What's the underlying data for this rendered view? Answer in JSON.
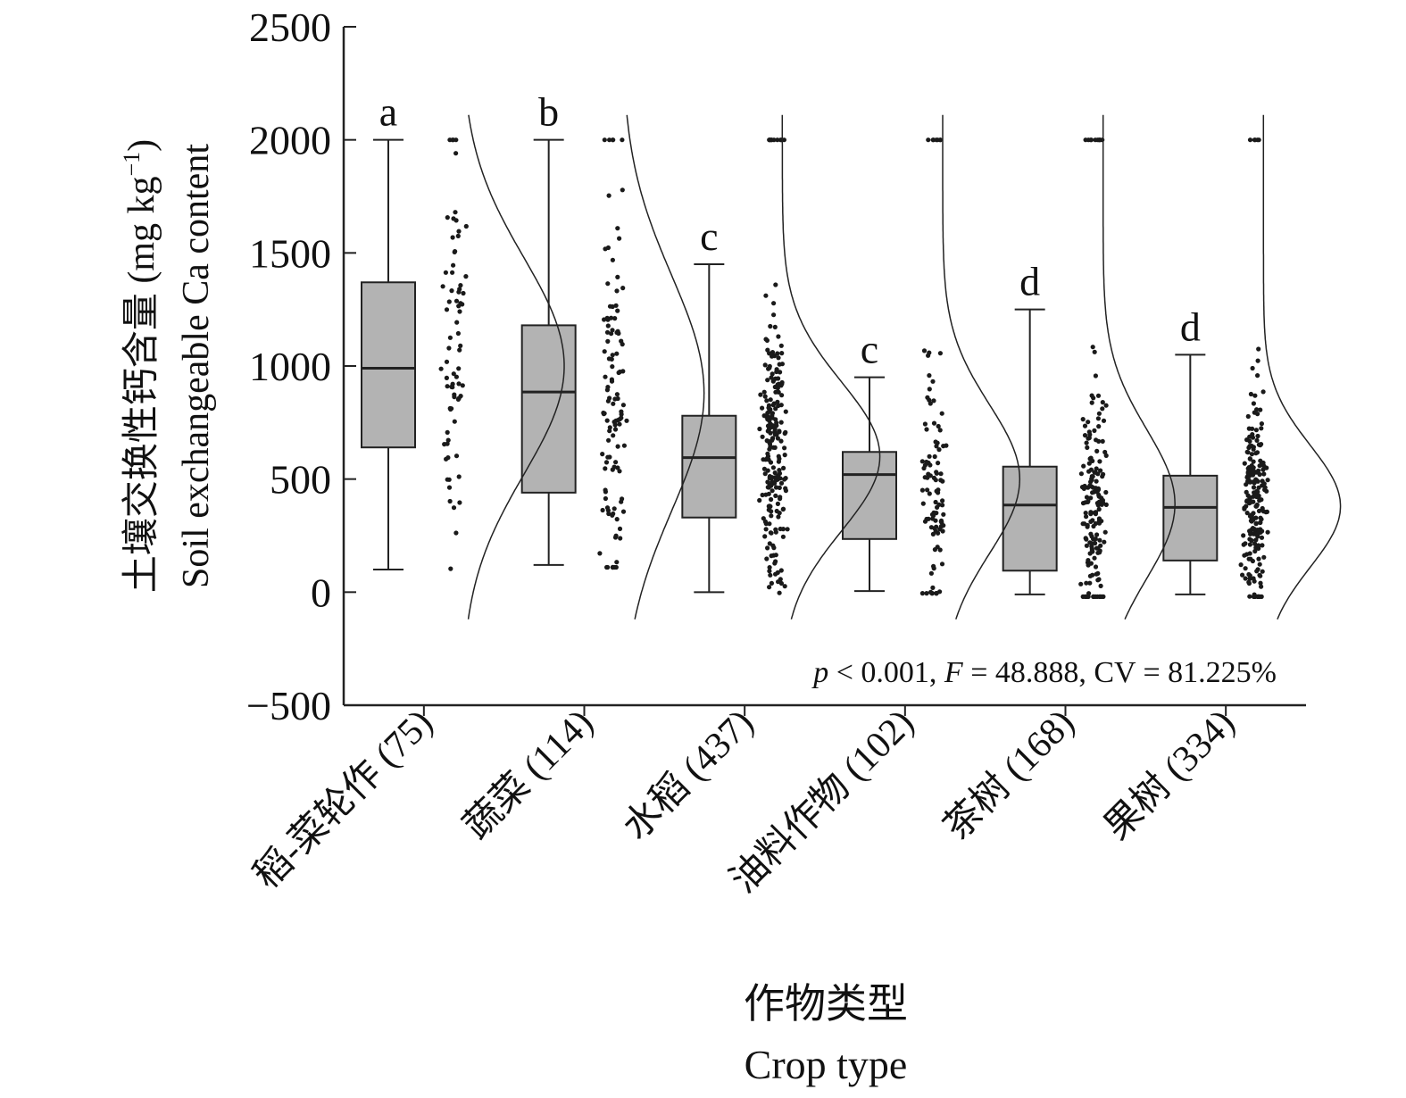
{
  "chart_data": {
    "type": "box",
    "ylabel_cn": "土壤交换性钙含量 (mg kg",
    "ylabel_sup": "−1",
    "ylabel_close": ")",
    "ylabel_en": "Soil exchangeable Ca content",
    "xlabel_cn": "作物类型",
    "xlabel_en": "Crop type",
    "ylim": [
      -500,
      2500
    ],
    "yticks": [
      -500,
      0,
      500,
      1000,
      1500,
      2000,
      2500
    ],
    "ytick_labels": [
      "−500",
      "0",
      "500",
      "1000",
      "1500",
      "2000",
      "2500"
    ],
    "categories": [
      "稻-菜轮作 (75)",
      "蔬菜 (114)",
      "水稻 (437)",
      "油料作物 (102)",
      "茶树 (168)",
      "果树 (334)"
    ],
    "letters": [
      "a",
      "b",
      "c",
      "c",
      "d",
      "d"
    ],
    "stats_text": {
      "p": "p",
      "p_rest": " < 0.001, ",
      "f": "F",
      "f_rest": " = 48.888, CV = 81.225%"
    },
    "boxes": [
      {
        "whisker_low": 100,
        "q1": 640,
        "median": 990,
        "q3": 1370,
        "whisker_high": 2000,
        "n": 75,
        "density_mean": 1000,
        "density_sd": 480,
        "density_peak": 1.0
      },
      {
        "whisker_low": 120,
        "q1": 440,
        "median": 885,
        "q3": 1180,
        "whisker_high": 2000,
        "n": 114,
        "density_mean": 880,
        "density_sd": 520,
        "density_peak": 0.8
      },
      {
        "whisker_low": 0,
        "q1": 330,
        "median": 595,
        "q3": 780,
        "whisker_high": 1450,
        "n": 437,
        "density_mean": 600,
        "density_sd": 330,
        "density_peak": 0.95
      },
      {
        "whisker_low": 5,
        "q1": 235,
        "median": 520,
        "q3": 620,
        "whisker_high": 950,
        "n": 102,
        "density_mean": 500,
        "density_sd": 330,
        "density_peak": 0.75
      },
      {
        "whisker_low": -10,
        "q1": 95,
        "median": 385,
        "q3": 555,
        "whisker_high": 1250,
        "n": 168,
        "density_mean": 390,
        "density_sd": 330,
        "density_peak": 0.7
      },
      {
        "whisker_low": -10,
        "q1": 140,
        "median": 375,
        "q3": 515,
        "whisker_high": 1050,
        "n": 334,
        "density_mean": 380,
        "density_sd": 270,
        "density_peak": 0.75
      }
    ],
    "colors": {
      "box_fill": "#b3b3b3",
      "stroke": "#222222",
      "points": "#1a1a1a"
    }
  }
}
